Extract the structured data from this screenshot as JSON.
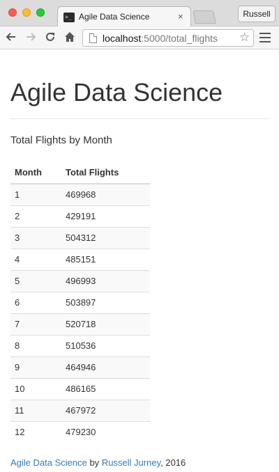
{
  "browser": {
    "tab_title": "Agile Data Science",
    "tab_close_glyph": "×",
    "profile_name": "Russell",
    "url_host": "localhost",
    "url_path": ":5000/total_flights",
    "icons": {
      "back": "back-arrow-icon",
      "forward": "forward-arrow-icon",
      "reload": "reload-icon",
      "home": "home-icon",
      "bookmark": "star-icon",
      "menu": "hamburger-menu-icon",
      "favicon": "terminal-icon",
      "page": "page-icon"
    }
  },
  "page": {
    "title": "Agile Data Science",
    "subtitle": "Total Flights by Month",
    "table": {
      "columns": [
        "Month",
        "Total Flights"
      ],
      "rows": [
        [
          "1",
          "469968"
        ],
        [
          "2",
          "429191"
        ],
        [
          "3",
          "504312"
        ],
        [
          "4",
          "485151"
        ],
        [
          "5",
          "496993"
        ],
        [
          "6",
          "503897"
        ],
        [
          "7",
          "520718"
        ],
        [
          "8",
          "510536"
        ],
        [
          "9",
          "464946"
        ],
        [
          "10",
          "486165"
        ],
        [
          "11",
          "467972"
        ],
        [
          "12",
          "479230"
        ]
      ]
    },
    "footer": {
      "site_link": "Agile Data Science",
      "by": " by ",
      "author_link": "Russell Jurney",
      "year": ", 2016"
    }
  },
  "colors": {
    "link": "#337ab7",
    "text": "#333333",
    "stripe": "#f9f9f9",
    "border": "#dddddd"
  }
}
